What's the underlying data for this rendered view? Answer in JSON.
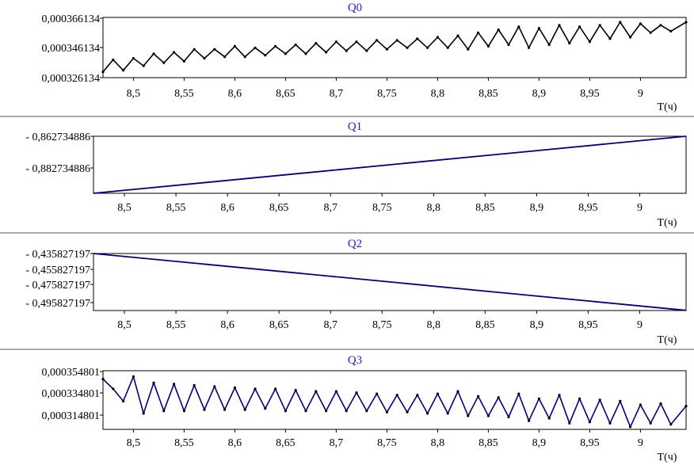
{
  "chart_data": [
    {
      "type": "line",
      "title": "Q0",
      "xlabel": "T(ч)",
      "ylabel": "",
      "xlim": [
        8.47,
        9.045
      ],
      "ylim": [
        0.000326134,
        0.000366134
      ],
      "xticks": [
        "8,5",
        "8,55",
        "8,6",
        "8,65",
        "8,7",
        "8,75",
        "8,8",
        "8,85",
        "8,9",
        "8,95",
        "9"
      ],
      "yticks": [
        "0,000366134",
        "0,000346134",
        "0,000326134"
      ],
      "grid": false,
      "series": [
        {
          "color": "#000000",
          "markers": true,
          "x": [
            8.47,
            8.48,
            8.49,
            8.5,
            8.51,
            8.52,
            8.53,
            8.54,
            8.55,
            8.56,
            8.57,
            8.58,
            8.59,
            8.6,
            8.61,
            8.62,
            8.63,
            8.64,
            8.65,
            8.66,
            8.67,
            8.68,
            8.69,
            8.7,
            8.71,
            8.72,
            8.73,
            8.74,
            8.75,
            8.76,
            8.77,
            8.78,
            8.79,
            8.8,
            8.81,
            8.82,
            8.83,
            8.84,
            8.85,
            8.86,
            8.87,
            8.88,
            8.89,
            8.9,
            8.91,
            8.92,
            8.93,
            8.94,
            8.95,
            8.96,
            8.97,
            8.98,
            8.99,
            9.0,
            9.01,
            9.02,
            9.03,
            9.045
          ],
          "y": [
            0.00033,
            0.000338,
            0.000331,
            0.000339,
            0.000334,
            0.000342,
            0.000336,
            0.000343,
            0.000337,
            0.000345,
            0.000339,
            0.000345,
            0.00034,
            0.000347,
            0.00034,
            0.000346,
            0.000341,
            0.000347,
            0.000342,
            0.000348,
            0.000342,
            0.000349,
            0.000343,
            0.00035,
            0.000344,
            0.00035,
            0.000344,
            0.000351,
            0.000345,
            0.000351,
            0.000346,
            0.000352,
            0.000346,
            0.000353,
            0.000346,
            0.000354,
            0.000345,
            0.000356,
            0.000347,
            0.000358,
            0.000348,
            0.00036,
            0.000346,
            0.000359,
            0.000348,
            0.000361,
            0.000349,
            0.00036,
            0.00035,
            0.000361,
            0.000352,
            0.000363,
            0.000353,
            0.000362,
            0.000356,
            0.000361,
            0.000357,
            0.000363
          ]
        }
      ]
    },
    {
      "type": "line",
      "title": "Q1",
      "xlabel": "T(ч)",
      "ylabel": "",
      "xlim": [
        8.47,
        9.045
      ],
      "ylim": [
        -0.897734886,
        -0.862734886
      ],
      "xticks": [
        "8,5",
        "8,55",
        "8,6",
        "8,65",
        "8,7",
        "8,75",
        "8,8",
        "8,85",
        "8,9",
        "8,95",
        "9"
      ],
      "yticks": [
        "- 0,862734886",
        "- 0,882734886"
      ],
      "grid": false,
      "series": [
        {
          "color": "#000080",
          "markers": false,
          "x": [
            8.47,
            9.045
          ],
          "y": [
            -0.897734886,
            -0.862734886
          ]
        }
      ]
    },
    {
      "type": "line",
      "title": "Q2",
      "xlabel": "T(ч)",
      "ylabel": "",
      "xlim": [
        8.47,
        9.045
      ],
      "ylim": [
        -0.5,
        -0.435827197
      ],
      "xticks": [
        "8,5",
        "8,55",
        "8,6",
        "8,65",
        "8,7",
        "8,75",
        "8,8",
        "8,85",
        "8,9",
        "8,95",
        "9"
      ],
      "yticks": [
        "- 0,435827197",
        "- 0,455827197",
        "- 0,475827197",
        "- 0,495827197"
      ],
      "grid": false,
      "series": [
        {
          "color": "#000080",
          "markers": false,
          "x": [
            8.47,
            9.045
          ],
          "y": [
            -0.435827197,
            -0.4998
          ]
        }
      ]
    },
    {
      "type": "line",
      "title": "Q3",
      "xlabel": "T(ч)",
      "ylabel": "",
      "xlim": [
        8.47,
        9.045
      ],
      "ylim": [
        0.000307,
        0.000354801
      ],
      "xticks": [
        "8,5",
        "8,55",
        "8,6",
        "8,65",
        "8,7",
        "8,75",
        "8,8",
        "8,85",
        "8,9",
        "8,95",
        "9"
      ],
      "yticks": [
        "0,000354801",
        "0,000334801",
        "0,000314801"
      ],
      "grid": false,
      "series": [
        {
          "color": "#000080",
          "markers": true,
          "x": [
            8.47,
            8.48,
            8.49,
            8.5,
            8.51,
            8.52,
            8.53,
            8.54,
            8.55,
            8.56,
            8.57,
            8.58,
            8.59,
            8.6,
            8.61,
            8.62,
            8.63,
            8.64,
            8.65,
            8.66,
            8.67,
            8.68,
            8.69,
            8.7,
            8.71,
            8.72,
            8.73,
            8.74,
            8.75,
            8.76,
            8.77,
            8.78,
            8.79,
            8.8,
            8.81,
            8.82,
            8.83,
            8.84,
            8.85,
            8.86,
            8.87,
            8.88,
            8.89,
            8.9,
            8.91,
            8.92,
            8.93,
            8.94,
            8.95,
            8.96,
            8.97,
            8.98,
            8.99,
            9.0,
            9.01,
            9.02,
            9.03,
            9.045
          ],
          "y": [
            0.000348,
            0.00034,
            0.00033,
            0.00035,
            0.00032,
            0.000345,
            0.000322,
            0.000344,
            0.000322,
            0.000343,
            0.000323,
            0.000342,
            0.000323,
            0.000341,
            0.000323,
            0.00034,
            0.000324,
            0.00034,
            0.000322,
            0.000339,
            0.000322,
            0.000338,
            0.000322,
            0.000338,
            0.000322,
            0.000337,
            0.000322,
            0.000336,
            0.000321,
            0.000335,
            0.000321,
            0.000335,
            0.00032,
            0.000336,
            0.00032,
            0.000338,
            0.000318,
            0.000334,
            0.000318,
            0.000333,
            0.000317,
            0.000336,
            0.000314,
            0.000332,
            0.000316,
            0.000335,
            0.000312,
            0.000332,
            0.000313,
            0.000331,
            0.000312,
            0.00033,
            0.000309,
            0.000327,
            0.000312,
            0.000328,
            0.000311,
            0.000326
          ]
        }
      ]
    }
  ]
}
